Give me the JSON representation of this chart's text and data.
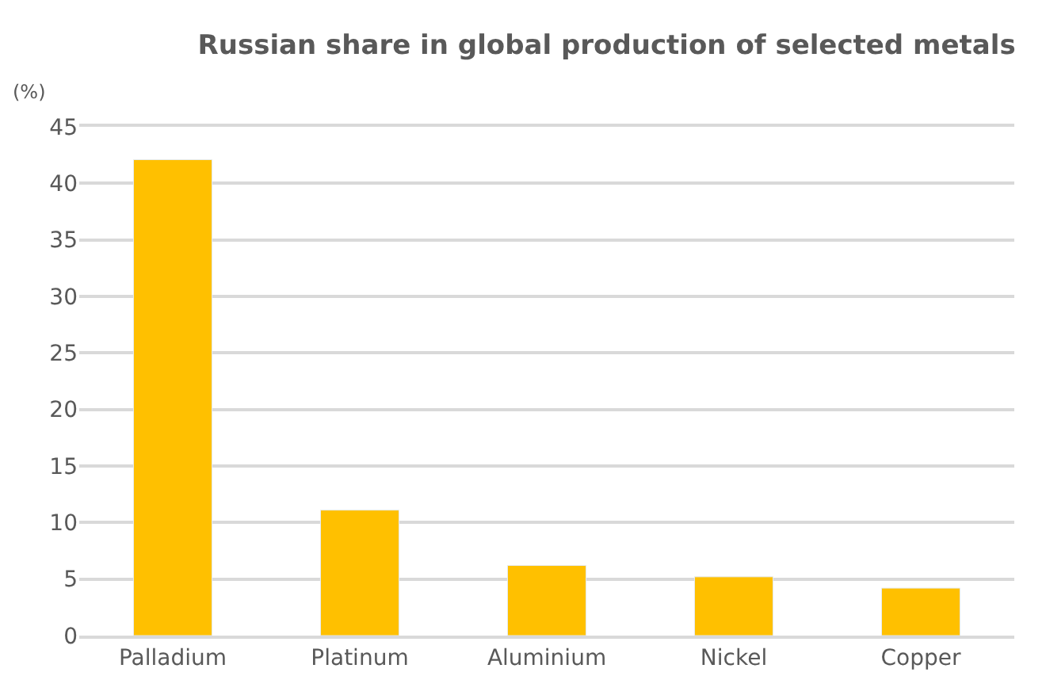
{
  "chart_data": {
    "type": "bar",
    "title": "Russian share in global production of selected metals",
    "ylabel": "(%)",
    "categories": [
      "Palladium",
      "Platinum",
      "Aluminium",
      "Nickel",
      "Copper"
    ],
    "values": [
      42.1,
      11.1,
      6.2,
      5.2,
      4.2
    ],
    "color": "#ffc000",
    "ylim": [
      0,
      45
    ],
    "yticks": [
      0,
      5,
      10,
      15,
      20,
      25,
      30,
      35,
      40,
      45
    ],
    "grid": "y"
  }
}
